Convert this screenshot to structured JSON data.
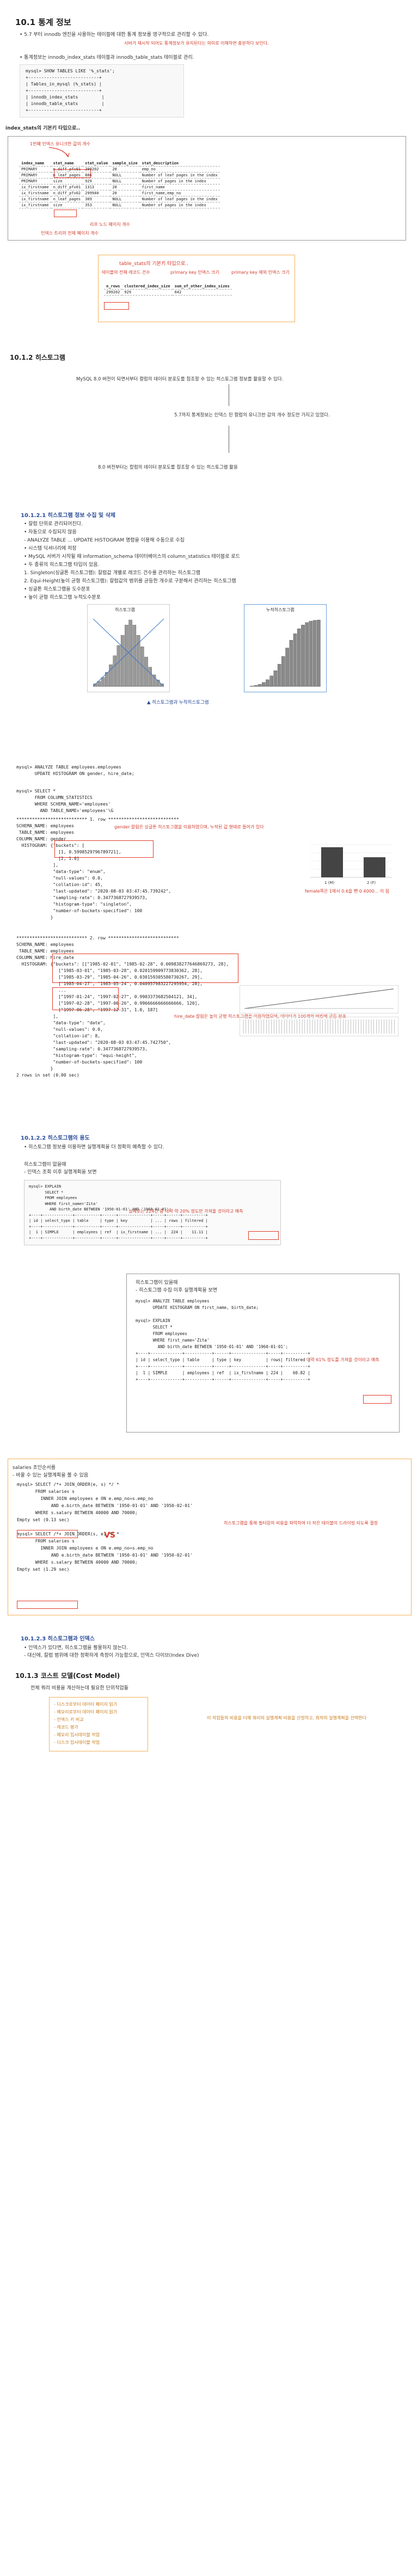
{
  "section_stats": {
    "title": "10.1 통계 정보",
    "bullet1": "• 5.7 부터 innodb 엔진을 사용하는 테이블에 대한 통계 정보를 영구적으로 관리할 수 있다.",
    "bullet1_note": "서버가 재시작 되어도 통계정보가 유지된다는 의미로 이해하면 충분하다 보인다.",
    "bullet2": "• 통계정보는 innodb_index_stats 테이블과 innodb_table_stats 테이블로 관리.",
    "show_tables_sql": "mysql> SHOW TABLES LIKE '%_stats';\n+---------------------------+\n| Tables_in_mysql (%_stats) |\n+---------------------------+\n| innodb_index_stats         |\n| innodb_table_stats         |\n+---------------------------+",
    "index_stats_label": "index_stats의 기본키 타입으로..",
    "index_stats_note": "1번째 인덱스 유니크한 값의 개수",
    "index_table": {
      "headers": [
        "index_name",
        "stat_name",
        "stat_value",
        "sample_size",
        "stat_description"
      ],
      "rows": [
        [
          "PRIMARY",
          "n_diff_pfx01",
          "299202",
          "20",
          "emp_no"
        ],
        [
          "PRIMARY",
          "n_leaf_pages",
          "886",
          "NULL",
          "Number of leaf pages in the index"
        ],
        [
          "PRIMARY",
          "size",
          "929",
          "NULL",
          "Number of pages in the index"
        ],
        [
          "ix_firstname",
          "n_diff_pfx01",
          "1313",
          "20",
          "first_name"
        ],
        [
          "ix_firstname",
          "n_diff_pfx02",
          "299940",
          "20",
          "first_name,emp_no"
        ],
        [
          "ix_firstname",
          "n_leaf_pages",
          "309",
          "NULL",
          "Number of leaf pages in the index"
        ],
        [
          "ix_firstname",
          "size",
          "353",
          "NULL",
          "Number of pages in the index"
        ]
      ],
      "note_leaf": "리프 노드 페이지 개수",
      "note_size": "인덱스 트리의 전체 페이지 개수"
    },
    "table_stats_label": "table_stats의 기본키 타입으로..",
    "table_stats_note1": "테이블의 전체 레코드 건수",
    "table_stats_note2": "primary key 인덱스 크기",
    "table_stats_note3": "primary key 제외 인덱스 크기",
    "table_stats": {
      "headers": [
        "n_rows",
        "clustered_index_size",
        "sum_of_other_index_sizes"
      ],
      "row": [
        "299202",
        "929",
        "642"
      ]
    }
  },
  "section_hist": {
    "title": "10.1.2 히스토그램",
    "intro1": "MySQL 8.0 버전이 되면서부터 컬럼의 데이터 분포도를 참조할 수 있는 히스토그램 정보를 활용할 수 있다.",
    "intro2": "5.7까지 통계정보는 인덱스 된 컬럼의 유니크한 값의 개수 정도만 가지고 있었다.",
    "intro3": "8.0 버전부터는 칼럼의 데이터 분포도를 참조할 수 있는 히스토그램 활용",
    "sub1_title": "10.1.2.1 히스토그램 정보 수집 및 삭제",
    "sub1_bullets": [
      "• 칼럼 단위로 관리되어진다.",
      "• 자동으로 수집되지 않음",
      "   - ANALYZE TABLE ... UPDATE HISTOGRAM 명령을 이용해 수동으로 수집",
      "• 시스템 딕셔너리에 저장",
      "• MySQL 서버가 시작될 때 information_schema 데이터베이스의 column_statistics 테이블로 로드",
      "• 두 종류의 히스토그램 타입이 있음.",
      "   1. Singleton(싱글톤 히스토그램): 칼럼값 개별로 레코드 건수를 관리하는 히스토그램",
      "   2. Equi-Height(높이 균형 히스토그램): 칼럼값의 범위를 균등한 개수로 구분해서 관리하는 히스토그램",
      "• 싱글톤 히스토그램을 도수분포",
      "• 높이 균형 히스토그램 누적도수분포"
    ],
    "chart_left_label": "히스토그램",
    "chart_right_label": "누적히스토그램",
    "chart_caption": "▲ 히스토그램과 누적히스토그램"
  },
  "section_analyze": {
    "sql1": "mysql> ANALYZE TABLE employees.employees\n       UPDATE HISTOGRAM ON gender, hire_date;",
    "sql2": "mysql> SELECT *\n       FROM COLUMN_STATISTICS\n       WHERE SCHEMA_NAME='employees'\n         AND TABLE_NAME='employees'\\G",
    "row1_header": "*************************** 1. row ***************************",
    "row1_body": "SCHEMA_NAME: employees\n TABLE_NAME: employees\nCOLUMN_NAME: gender\n  HISTOGRAM: {\"buckets\": [\n                [1, 0.5998529796789721],\n                [2, 1.0]\n              ],\n              \"data-type\": \"enum\",\n              \"null-values\": 0.0,\n              \"collation-id\": 45,\n              \"last-updated\": \"2020-08-03 03:47:45.739242\",\n              \"sampling-rate\": 0.3477368727939573,\n              \"histogram-type\": \"singleton\",\n              \"number-of-buckets-specified\": 100\n             }",
    "gender_note": "gender 칼럼은 싱글톤 히스토그램을 이용하였으며, 누적된 값 형태로 들어가 있다",
    "gender_note2": "female쪽은 1에서 0.6을 뺀 0.4000... 이 됨",
    "bar_chart_label_m": "1 (M)",
    "bar_chart_label_f": "2 (F)",
    "row2_header": "*************************** 2. row ***************************",
    "row2_body": "SCHEMA_NAME: employees\n TABLE_NAME: employees\nCOLUMN_NAME: hire_date\n  HISTOGRAM: {\"buckets\": [[\"1985-02-01\", \"1985-02-28\", 0.009838277646869273, 28],\n                [\"1985-03-01\", \"1985-03-28\", 0.020159909773830362, 28],\n                [\"1985-03-29\", \"1985-04-26\", 0.030159305580730267, 29],\n                [\"1985-04-27\", \"1985-05-24\", 0.040957983227295954, 28],\n                ...\n                [\"1997-01-24\", \"1997-02-27\", 0.9903373682504121, 34],\n                [\"1997-02-28\", \"1997-06-26\", 0.9966666666666666, 120],\n                [\"1997-06-28\", \"1997-12-31\", 1.0, 187]\n              ],\n              \"data-type\": \"date\",\n              \"null-values\": 0.0,\n              \"collation-id\": 8,\n              \"last-updated\": \"2020-08-03 03:47:45.742750\",\n              \"sampling-rate\": 0.3477368727939573,\n              \"histogram-type\": \"equi-height\",\n              \"number-of-buckets-specified\": 100\n             }\n2 rows in set (0.00 sec)",
    "hire_note": "hire_date 칼럼은 높이 균형 히스토그램을 이용하였으며, 데이터가 100개의 버킷에 균등 분포"
  },
  "section_usage": {
    "title": "10.1.2.2 히스토그램의 용도",
    "bullet": "• 히스토그램 정보를 이용하면 실행계획을 더 정확히 예측할 수 있다.",
    "before_label": "히스토그램이 없을때",
    "before_sub": "- 인덱스 조회 이후 실행계획을 보면",
    "explain1": "mysql> EXPLAIN\n       SELECT *\n       FROM employees\n       WHERE first_name='Zita'\n         AND birth_date BETWEEN '1950-01-01' AND '1960-01-01';\n+----+-------------+-----------+------+--------------+-----+------+----------+\n| id | select_type | table     | type | key          | ... | rows | filtered |\n+----+-------------+-----------+------+--------------+-----+------+----------+\n|  1 | SIMPLE      | employees | ref  | ix_firstname | ... |  224 |    11.11 |\n+----+-------------+-----------+------+--------------+-----+------+----------+",
    "explain1_note": "실제로는 224건 중 대략 약 20% 정도만 가져올 것이라고 예측",
    "after_label": "히스토그램이 있을때",
    "after_sub": "- 히스토그램 수집 이후 실행계획을 보면",
    "explain2": "mysql> ANALYZE TABLE employees\n       UPDATE HISTOGRAM ON first_name, birth_date;\n\nmysql> EXPLAIN\n       SELECT *\n       FROM employees\n       WHERE first_name='Zita'\n         AND birth_date BETWEEN '1950-01-01' AND '1960-01-01';\n+----+-------------+-----------+------+--------------+-----+----------+\n| id | select_type | table     | type | key          | rows| filtered |\n+----+-------------+-----------+------+--------------+-----+----------+\n|  1 | SIMPLE      | employees | ref  | ix_firstname | 224 |    60.82 |\n+----+-------------+-----------+------+--------------+-----+----------+",
    "explain2_note": "대략 61% 정도를 가져올 것이라고 예측"
  },
  "section_join": {
    "label": "salaries 조인순서를",
    "sub": "- 바꿀 수 있는 실행계획을 볼 수 있음",
    "sql": "mysql> SELECT /*+ JOIN_ORDER(e, s) */ *\n       FROM salaries s\n         INNER JOIN employees e ON e.emp_no=s.emp_no\n             AND e.birth_date BETWEEN '1950-01-01' AND '1950-02-01'\n       WHERE s.salary BETWEEN 40000 AND 70000;\nEmpty set (0.13 sec)\n\nmysql> SELECT /*+ JOIN_ORDER(s, e) */ *\n       FROM salaries s\n         INNER JOIN employees e ON e.emp_no=s.emp_no\n             AND e.birth_date BETWEEN '1950-01-01' AND '1950-02-01'\n       WHERE s.salary BETWEEN 40000 AND 70000;\nEmpty set (1.29 sec)",
    "note": "히스토그램을 통해 필터링의 비용을 파악하여 더 작은 테이블이 드라이빙 되도록 결정",
    "vs": "VS"
  },
  "section_index": {
    "title": "10.1.2.3 히스토그램과 인덱스",
    "bullet1": "• 인덱스가 있다면, 히스토그램을 활용하지 않는다.",
    "bullet2": "   - 대신에, 칼럼 범위에 대한 정확하게 측정이 가능함으로, 인덱스 다이브(Index Dive)"
  },
  "section_cost": {
    "title": "10.1.3 코스트 모델(Cost Model)",
    "intro": "전체 쿼리 비용을 계산하는데 필요한 단위작업들",
    "items": [
      "- 디스크로부터 데이터 페이지 읽기",
      "- 메모리로부터 데이터 페이지 읽기",
      "- 인덱스 키 비교",
      "- 레코드 평가",
      "- 메모리 임시테이블 작업",
      "- 디스크 임시테이블 작업"
    ],
    "note": "이 작업들의 비용을 더해 쿼리의 실행계획 비용을 산정하고, 최적의 실행계획을 선택한다"
  },
  "chart_data": [
    {
      "type": "bar",
      "title": "히스토그램",
      "categories": [
        "1",
        "2",
        "3",
        "4",
        "5",
        "6",
        "7",
        "8",
        "9",
        "10",
        "11",
        "12",
        "13",
        "14",
        "15",
        "16",
        "17",
        "18"
      ],
      "values": [
        2,
        4,
        7,
        11,
        17,
        24,
        32,
        40,
        48,
        52,
        48,
        40,
        31,
        23,
        15,
        9,
        5,
        2
      ]
    },
    {
      "type": "bar",
      "title": "누적히스토그램",
      "categories": [
        "1",
        "2",
        "3",
        "4",
        "5",
        "6",
        "7",
        "8",
        "9",
        "10",
        "11",
        "12",
        "13",
        "14",
        "15",
        "16",
        "17",
        "18"
      ],
      "values": [
        2,
        6,
        13,
        24,
        41,
        65,
        97,
        137,
        185,
        237,
        285,
        325,
        356,
        379,
        394,
        403,
        408,
        410
      ]
    },
    {
      "type": "bar",
      "title": "",
      "categories": [
        "1 (M)",
        "2 (F)"
      ],
      "values": [
        0.5998529796789721,
        0.4001470203210279
      ]
    }
  ]
}
